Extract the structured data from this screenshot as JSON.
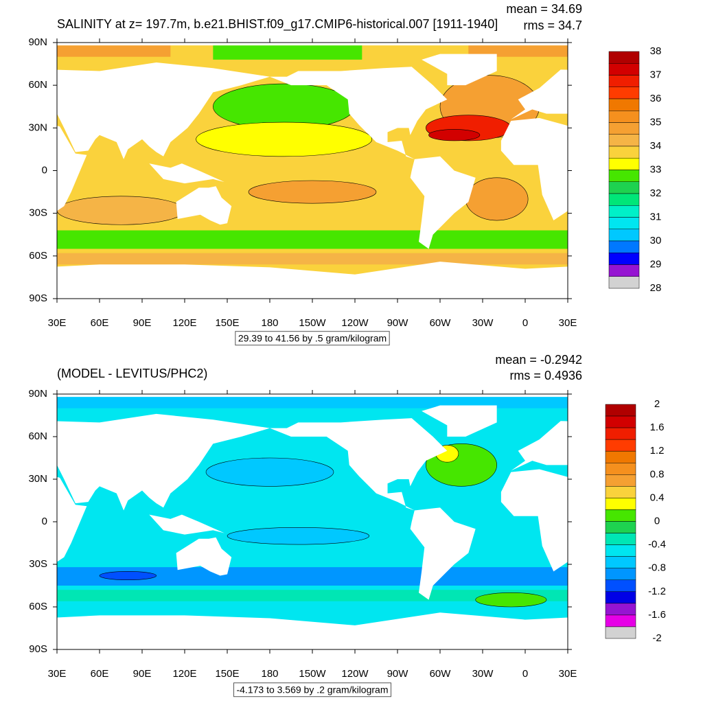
{
  "chart_data": [
    {
      "type": "contour-map",
      "title": "SALINITY at z= 197.7m, b.e21.BHIST.f09_g17.CMIP6-historical.007 [1911-1940]",
      "stats": [
        "mean = 34.69",
        "rms = 34.7"
      ],
      "footer": "29.39 to 41.56 by .5 gram/kilogram",
      "xlim": [
        30,
        390
      ],
      "xticks": [
        {
          "value": 30,
          "label": "30E"
        },
        {
          "value": 60,
          "label": "60E"
        },
        {
          "value": 90,
          "label": "90E"
        },
        {
          "value": 120,
          "label": "120E"
        },
        {
          "value": 150,
          "label": "150E"
        },
        180,
        {
          "value": 210,
          "label": "150W"
        },
        {
          "value": 240,
          "label": "120W"
        },
        {
          "value": 270,
          "label": "90W"
        },
        {
          "value": 300,
          "label": "60W"
        },
        {
          "value": 330,
          "label": "30W"
        },
        {
          "value": 360,
          "label": "0"
        },
        {
          "value": 390,
          "label": "30E"
        }
      ],
      "ylim": [
        -90,
        90
      ],
      "yticks": [
        {
          "value": 90,
          "label": "90N"
        },
        {
          "value": 60,
          "label": "60N"
        },
        {
          "value": 30,
          "label": "30N"
        },
        0,
        {
          "value": -30,
          "label": "30S"
        },
        {
          "value": -60,
          "label": "60S"
        },
        {
          "value": -90,
          "label": "90S"
        }
      ],
      "colorbar": {
        "levels": [
          38,
          37,
          36,
          35,
          34,
          33,
          32,
          31,
          30,
          29,
          28
        ],
        "colors": [
          "#b00000",
          "#d20000",
          "#f01e00",
          "#ff3c00",
          "#f07800",
          "#f5901e",
          "#f5a032",
          "#f5b446",
          "#fad23c",
          "#ffff00",
          "#46e600",
          "#1ed250",
          "#00e678",
          "#00f0c8",
          "#00e6f0",
          "#00c8ff",
          "#0078ff",
          "#0000ff",
          "#9614d2",
          "#d2d2d2"
        ]
      }
    },
    {
      "type": "contour-map",
      "title": "(MODEL - LEVITUS/PHC2)",
      "stats": [
        "mean = -0.2942",
        "rms = 0.4936"
      ],
      "footer": "-4.173 to 3.569 by .2 gram/kilogram",
      "xlim": [
        30,
        390
      ],
      "xticks": [
        {
          "value": 30,
          "label": "30E"
        },
        {
          "value": 60,
          "label": "60E"
        },
        {
          "value": 90,
          "label": "90E"
        },
        {
          "value": 120,
          "label": "120E"
        },
        {
          "value": 150,
          "label": "150E"
        },
        180,
        {
          "value": 210,
          "label": "150W"
        },
        {
          "value": 240,
          "label": "120W"
        },
        {
          "value": 270,
          "label": "90W"
        },
        {
          "value": 300,
          "label": "60W"
        },
        {
          "value": 330,
          "label": "30W"
        },
        {
          "value": 360,
          "label": "0"
        },
        {
          "value": 390,
          "label": "30E"
        }
      ],
      "ylim": [
        -90,
        90
      ],
      "yticks": [
        {
          "value": 90,
          "label": "90N"
        },
        {
          "value": 60,
          "label": "60N"
        },
        {
          "value": 30,
          "label": "30N"
        },
        0,
        {
          "value": -30,
          "label": "30S"
        },
        {
          "value": -60,
          "label": "60S"
        },
        {
          "value": -90,
          "label": "90S"
        }
      ],
      "colorbar": {
        "levels": [
          2,
          1.6,
          1.2,
          0.8,
          0.4,
          0,
          -0.4,
          -0.8,
          -1.2,
          -1.6,
          -2
        ],
        "colors": [
          "#b00000",
          "#d20000",
          "#f01e00",
          "#ff3c00",
          "#f07800",
          "#f5901e",
          "#f5a032",
          "#fad23c",
          "#ffff00",
          "#46e600",
          "#1ed250",
          "#00e6b4",
          "#00e6f0",
          "#00c8ff",
          "#0096ff",
          "#0050ff",
          "#0000e6",
          "#9614d2",
          "#e600e6",
          "#d2d2d2"
        ]
      }
    }
  ]
}
